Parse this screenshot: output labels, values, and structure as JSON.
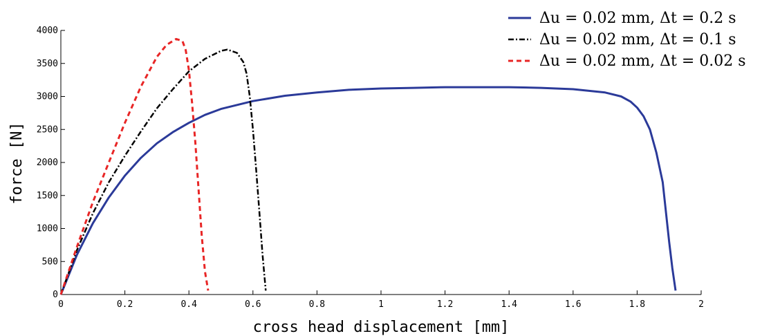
{
  "chart_data": {
    "type": "line",
    "xlabel": "cross head displacement [mm]",
    "ylabel": "force [N]",
    "xlim": [
      0,
      2
    ],
    "ylim": [
      0,
      4000
    ],
    "xticks": [
      0,
      0.2,
      0.4,
      0.6,
      0.8,
      1,
      1.2,
      1.4,
      1.6,
      1.8,
      2
    ],
    "yticks": [
      0,
      500,
      1000,
      1500,
      2000,
      2500,
      3000,
      3500,
      4000
    ],
    "grid": false,
    "legend_position": "top-right",
    "series": [
      {
        "name": "Δu = 0.02 mm, Δt = 0.2 s",
        "color": "#2b3a99",
        "style": "solid",
        "x": [
          0,
          0.05,
          0.1,
          0.15,
          0.2,
          0.25,
          0.3,
          0.35,
          0.4,
          0.45,
          0.5,
          0.6,
          0.7,
          0.8,
          0.9,
          1.0,
          1.1,
          1.2,
          1.3,
          1.4,
          1.5,
          1.6,
          1.7,
          1.75,
          1.78,
          1.8,
          1.82,
          1.84,
          1.86,
          1.88,
          1.9,
          1.91,
          1.92
        ],
        "y": [
          0,
          600,
          1080,
          1470,
          1800,
          2070,
          2290,
          2460,
          2600,
          2720,
          2810,
          2930,
          3010,
          3060,
          3100,
          3120,
          3130,
          3140,
          3140,
          3140,
          3130,
          3110,
          3060,
          3000,
          2920,
          2830,
          2700,
          2500,
          2150,
          1700,
          800,
          400,
          60
        ]
      },
      {
        "name": "Δu = 0.02 mm, Δt = 0.1 s",
        "color": "#000000",
        "style": "dashdot",
        "x": [
          0,
          0.05,
          0.1,
          0.15,
          0.2,
          0.25,
          0.3,
          0.35,
          0.4,
          0.45,
          0.5,
          0.52,
          0.55,
          0.57,
          0.58,
          0.59,
          0.6,
          0.61,
          0.62,
          0.63,
          0.64
        ],
        "y": [
          0,
          670,
          1230,
          1700,
          2100,
          2470,
          2820,
          3110,
          3380,
          3570,
          3690,
          3710,
          3660,
          3520,
          3350,
          3000,
          2500,
          1900,
          1250,
          600,
          60
        ]
      },
      {
        "name": "Δu = 0.02 mm, Δt = 0.02 s",
        "color": "#e82626",
        "style": "dashed",
        "x": [
          0,
          0.05,
          0.1,
          0.15,
          0.2,
          0.25,
          0.3,
          0.33,
          0.36,
          0.38,
          0.39,
          0.4,
          0.41,
          0.42,
          0.43,
          0.44,
          0.45,
          0.46
        ],
        "y": [
          0,
          720,
          1400,
          2000,
          2600,
          3150,
          3600,
          3780,
          3870,
          3840,
          3700,
          3400,
          2900,
          2300,
          1600,
          900,
          350,
          60
        ]
      }
    ]
  }
}
